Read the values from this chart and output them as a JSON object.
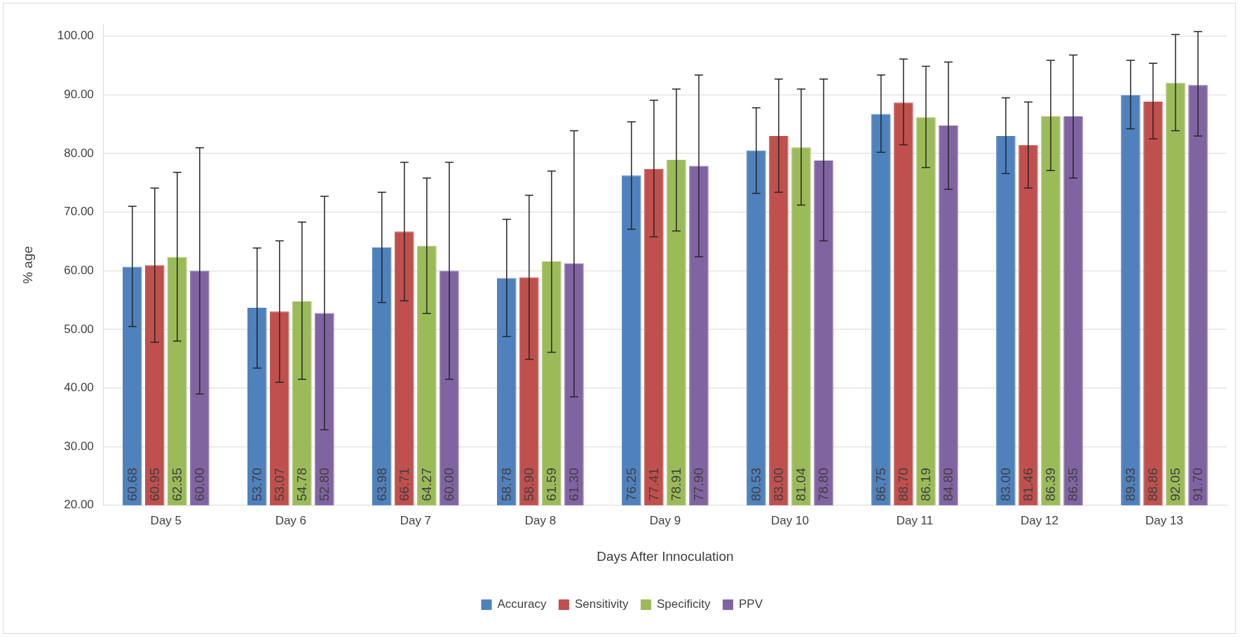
{
  "chart_data": {
    "type": "bar",
    "xlabel": "Days After Innoculation",
    "ylabel": "% age",
    "categories": [
      "Day 5",
      "Day 6",
      "Day 7",
      "Day 8",
      "Day 9",
      "Day 10",
      "Day 11",
      "Day 12",
      "Day 13"
    ],
    "series": [
      {
        "name": "Accuracy",
        "color": "#4f81bd",
        "values": [
          60.68,
          53.7,
          63.98,
          58.78,
          76.25,
          80.53,
          86.75,
          83.0,
          89.93
        ],
        "value_labels": [
          "60.68",
          "53.70",
          "63.98",
          "58.78",
          "76.25",
          "80.53",
          "86.75",
          "83.00",
          "89.93"
        ],
        "errors": [
          [
            50.5,
            71.0
          ],
          [
            43.4,
            63.9
          ],
          [
            54.6,
            73.4
          ],
          [
            48.8,
            68.8
          ],
          [
            67.1,
            85.4
          ],
          [
            73.2,
            87.8
          ],
          [
            80.2,
            93.4
          ],
          [
            76.6,
            89.5
          ],
          [
            84.2,
            95.9
          ]
        ]
      },
      {
        "name": "Sensitivity",
        "color": "#c0504d",
        "values": [
          60.95,
          53.07,
          66.71,
          58.9,
          77.41,
          83.0,
          88.7,
          81.46,
          88.86
        ],
        "value_labels": [
          "60.95",
          "53.07",
          "66.71",
          "58.90",
          "77.41",
          "83.00",
          "88.70",
          "81.46",
          "88.86"
        ],
        "errors": [
          [
            47.8,
            74.1
          ],
          [
            41.0,
            65.1
          ],
          [
            54.9,
            78.5
          ],
          [
            44.9,
            72.9
          ],
          [
            65.8,
            89.1
          ],
          [
            73.4,
            92.7
          ],
          [
            81.5,
            96.1
          ],
          [
            74.1,
            88.8
          ],
          [
            82.5,
            95.4
          ]
        ]
      },
      {
        "name": "Specificity",
        "color": "#9bbb59",
        "values": [
          62.35,
          54.78,
          64.27,
          61.59,
          78.91,
          81.04,
          86.19,
          86.39,
          92.05
        ],
        "value_labels": [
          "62.35",
          "54.78",
          "64.27",
          "61.59",
          "78.91",
          "81.04",
          "86.19",
          "86.39",
          "92.05"
        ],
        "errors": [
          [
            48.0,
            76.8
          ],
          [
            41.5,
            68.3
          ],
          [
            52.7,
            75.8
          ],
          [
            46.1,
            77.0
          ],
          [
            66.8,
            91.0
          ],
          [
            71.2,
            91.0
          ],
          [
            77.6,
            94.9
          ],
          [
            77.1,
            95.9
          ],
          [
            83.9,
            100.3
          ]
        ]
      },
      {
        "name": "PPV",
        "color": "#8064a2",
        "values": [
          60.0,
          52.8,
          60.0,
          61.3,
          77.9,
          78.8,
          84.8,
          86.35,
          91.7
        ],
        "value_labels": [
          "60.00",
          "52.80",
          "60.00",
          "61.30",
          "77.90",
          "78.80",
          "84.80",
          "86.35",
          "91.70"
        ],
        "errors": [
          [
            39.0,
            81.0
          ],
          [
            32.9,
            72.7
          ],
          [
            41.5,
            78.5
          ],
          [
            38.5,
            83.9
          ],
          [
            62.4,
            93.4
          ],
          [
            65.1,
            92.7
          ],
          [
            73.9,
            95.6
          ],
          [
            75.8,
            96.8
          ],
          [
            83.0,
            100.8
          ]
        ]
      }
    ],
    "ylim": [
      20,
      102
    ],
    "yticks": [
      {
        "value": 20,
        "label": "20.00"
      },
      {
        "value": 30,
        "label": "30.00"
      },
      {
        "value": 40,
        "label": "40.00"
      },
      {
        "value": 50,
        "label": "50.00"
      },
      {
        "value": 60,
        "label": "60.00"
      },
      {
        "value": 70,
        "label": "70.00"
      },
      {
        "value": 80,
        "label": "80.00"
      },
      {
        "value": 90,
        "label": "90.00"
      },
      {
        "value": 100,
        "label": "100.00"
      }
    ],
    "grid": "y",
    "legend": "bottom"
  }
}
